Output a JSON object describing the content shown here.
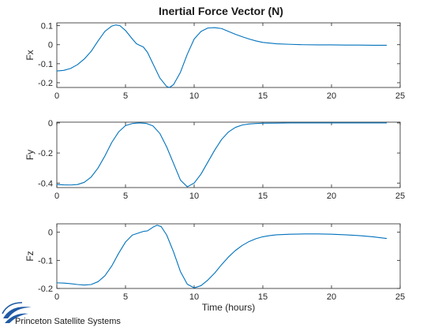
{
  "figure": {
    "title": "Inertial Force Vector (N)",
    "xlabel": "Time (hours)"
  },
  "logo": {
    "text": "Princeton Satellite Systems",
    "color": "#1f5aa6"
  },
  "colors": {
    "line": "#0072bd",
    "axis": "#262626",
    "background": "#ffffff"
  },
  "chart_data": [
    {
      "type": "line",
      "ylabel": "Fx",
      "xlim": [
        0,
        25
      ],
      "ylim": [
        -0.225,
        0.115
      ],
      "xticks": [
        0,
        5,
        10,
        15,
        20,
        25
      ],
      "yticks": [
        -0.2,
        -0.1,
        0,
        0.1
      ],
      "ytick_labels": [
        "-0.2",
        "-0.1",
        "0",
        "0.1"
      ],
      "grid": false,
      "series": [
        {
          "x": [
            0,
            0.5,
            1,
            1.5,
            2,
            2.5,
            3,
            3.5,
            4,
            4.3,
            4.6,
            5,
            5.5,
            5.8,
            6,
            6.3,
            6.6,
            7,
            7.5,
            8,
            8.2,
            8.5,
            9,
            9.5,
            10,
            10.5,
            11,
            11.5,
            12,
            12.5,
            13,
            13.5,
            14,
            14.5,
            15,
            16,
            17,
            18,
            19,
            20,
            21,
            22,
            23,
            24
          ],
          "y": [
            -0.138,
            -0.135,
            -0.125,
            -0.105,
            -0.075,
            -0.035,
            0.02,
            0.07,
            0.098,
            0.104,
            0.1,
            0.075,
            0.03,
            0.005,
            -0.002,
            -0.012,
            -0.04,
            -0.1,
            -0.175,
            -0.22,
            -0.225,
            -0.21,
            -0.145,
            -0.05,
            0.03,
            0.07,
            0.088,
            0.09,
            0.085,
            0.07,
            0.055,
            0.042,
            0.03,
            0.02,
            0.012,
            0.005,
            0.002,
            0,
            -0.001,
            -0.001,
            -0.002,
            -0.002,
            -0.003,
            -0.003
          ]
        }
      ]
    },
    {
      "type": "line",
      "ylabel": "Fy",
      "xlim": [
        0,
        25
      ],
      "ylim": [
        -0.43,
        0.005
      ],
      "xticks": [
        0,
        5,
        10,
        15,
        20,
        25
      ],
      "yticks": [
        -0.4,
        -0.2,
        0
      ],
      "ytick_labels": [
        "-0.4",
        "-0.2",
        "0"
      ],
      "grid": false,
      "series": [
        {
          "x": [
            0,
            0.5,
            1,
            1.5,
            2,
            2.5,
            3,
            3.5,
            4,
            4.5,
            5,
            5.5,
            6,
            6.5,
            7,
            7.5,
            8,
            8.5,
            9,
            9.5,
            10,
            10.5,
            11,
            11.5,
            12,
            12.5,
            13,
            13.5,
            14,
            14.5,
            15,
            16,
            17,
            18,
            19,
            20,
            21,
            22,
            23,
            24
          ],
          "y": [
            -0.41,
            -0.412,
            -0.413,
            -0.41,
            -0.395,
            -0.36,
            -0.3,
            -0.22,
            -0.13,
            -0.06,
            -0.018,
            -0.004,
            0,
            -0.003,
            -0.02,
            -0.07,
            -0.16,
            -0.27,
            -0.38,
            -0.425,
            -0.4,
            -0.34,
            -0.26,
            -0.18,
            -0.11,
            -0.06,
            -0.03,
            -0.014,
            -0.007,
            -0.004,
            -0.002,
            -0.001,
            0,
            0,
            0,
            0,
            0,
            0,
            0,
            0
          ]
        }
      ]
    },
    {
      "type": "line",
      "ylabel": "Fz",
      "xlim": [
        0,
        25
      ],
      "ylim": [
        -0.2,
        0.03
      ],
      "xticks": [
        0,
        5,
        10,
        15,
        20,
        25
      ],
      "yticks": [
        -0.2,
        -0.1,
        0
      ],
      "ytick_labels": [
        "-0.2",
        "-0.1",
        "0"
      ],
      "grid": false,
      "series": [
        {
          "x": [
            0,
            0.5,
            1,
            1.5,
            2,
            2.5,
            3,
            3.5,
            4,
            4.5,
            5,
            5.5,
            6,
            6.3,
            6.6,
            7,
            7.3,
            7.6,
            8,
            8.5,
            9,
            9.5,
            10,
            10.5,
            11,
            11.5,
            12,
            12.5,
            13,
            13.5,
            14,
            14.5,
            15,
            15.5,
            16,
            17,
            18,
            19,
            20,
            21,
            22,
            23,
            24
          ],
          "y": [
            -0.18,
            -0.181,
            -0.183,
            -0.186,
            -0.188,
            -0.186,
            -0.176,
            -0.155,
            -0.12,
            -0.075,
            -0.035,
            -0.01,
            -0.002,
            0.003,
            0.005,
            0.018,
            0.025,
            0.02,
            -0.01,
            -0.07,
            -0.14,
            -0.185,
            -0.198,
            -0.19,
            -0.17,
            -0.145,
            -0.115,
            -0.088,
            -0.065,
            -0.047,
            -0.033,
            -0.023,
            -0.016,
            -0.012,
            -0.009,
            -0.007,
            -0.006,
            -0.006,
            -0.007,
            -0.009,
            -0.012,
            -0.016,
            -0.022
          ]
        }
      ]
    }
  ]
}
